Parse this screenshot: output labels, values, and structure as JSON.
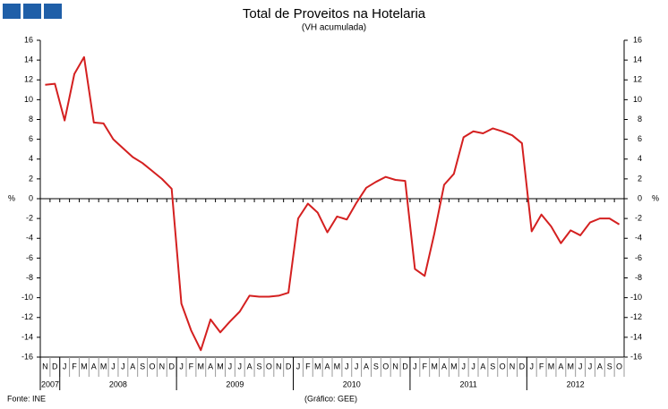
{
  "chart_data": {
    "type": "line",
    "title": "Total de Proveitos na Hotelaria",
    "subtitle": "(VH acumulada)",
    "y_label": "%",
    "y2_label": "%",
    "categories": [
      "N",
      "D",
      "J",
      "F",
      "M",
      "A",
      "M",
      "J",
      "J",
      "A",
      "S",
      "O",
      "N",
      "D",
      "J",
      "F",
      "M",
      "A",
      "M",
      "J",
      "J",
      "A",
      "S",
      "O",
      "N",
      "D",
      "J",
      "F",
      "M",
      "A",
      "M",
      "J",
      "J",
      "A",
      "S",
      "O",
      "N",
      "D",
      "J",
      "F",
      "M",
      "A",
      "M",
      "J",
      "J",
      "A",
      "S",
      "O",
      "N",
      "D",
      "J",
      "F",
      "M",
      "A",
      "M",
      "J",
      "J",
      "A",
      "S",
      "O"
    ],
    "years": [
      "2007",
      "2008",
      "2009",
      "2010",
      "2011",
      "2012"
    ],
    "series": [
      {
        "name": "Total de Proveitos",
        "color": "#d42020",
        "values": [
          11.5,
          11.6,
          7.9,
          12.6,
          14.3,
          7.7,
          7.6,
          6.0,
          5.1,
          4.2,
          3.6,
          2.8,
          2.0,
          1.0,
          -10.6,
          -13.3,
          -15.3,
          -12.2,
          -13.5,
          -12.4,
          -11.4,
          -9.8,
          -9.9,
          -9.9,
          -9.8,
          -9.5,
          -2.0,
          -0.5,
          -1.4,
          -3.4,
          -1.8,
          -2.1,
          -0.4,
          1.1,
          1.7,
          2.2,
          1.9,
          1.8,
          -7.1,
          -7.8,
          -3.5,
          1.4,
          2.5,
          6.2,
          6.8,
          6.6,
          7.1,
          6.8,
          6.4,
          5.6,
          -3.3,
          -1.6,
          -2.8,
          -4.5,
          -3.2,
          -3.7,
          -2.4,
          -2.0,
          -2.0,
          -2.6
        ]
      }
    ],
    "ylim": [
      -16,
      16
    ],
    "yticks": [
      -16,
      -14,
      -12,
      -10,
      -8,
      -6,
      -4,
      -2,
      0,
      2,
      4,
      6,
      8,
      10,
      12,
      14,
      16
    ],
    "y2lim": [
      -16,
      16
    ],
    "y2ticks": [
      -16,
      -14,
      -12,
      -10,
      -8,
      -6,
      -4,
      -2,
      0,
      2,
      4,
      6,
      8,
      10,
      12,
      14,
      16
    ],
    "source": "Fonte: INE",
    "credit": "(Gráfico: GEE)"
  }
}
